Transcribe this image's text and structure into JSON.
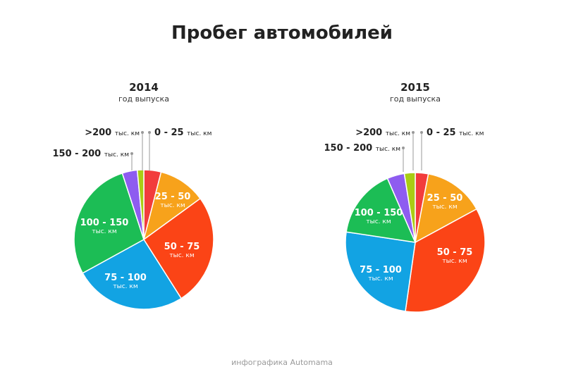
{
  "title": "Пробег автомобилей",
  "footer": "инфографика Automama",
  "colors": {
    "0 - 25": "#f23c3c",
    "25 - 50": "#f7a21b",
    "50 - 75": "#fb4416",
    "75 - 100": "#12a3e3",
    "100 - 150": "#1cbd55",
    "150 - 200": "#8e5cf0",
    ">200": "#a9cd14"
  },
  "chart_data": [
    {
      "type": "pie",
      "title": "2014",
      "subtitle": "год выпуска",
      "unit": "тыс. км",
      "categories": [
        "0 - 25",
        "25 - 50",
        "50 - 75",
        "75 - 100",
        "100 - 150",
        "150 - 200",
        ">200"
      ],
      "values": [
        4,
        11,
        26,
        26,
        28,
        3.5,
        1.5
      ]
    },
    {
      "type": "pie",
      "title": "2015",
      "subtitle": "год выпуска",
      "unit": "тыс. км",
      "categories": [
        "0 - 25",
        "25 - 50",
        "50 - 75",
        "75 - 100",
        "100 - 150",
        "150 - 200",
        ">200"
      ],
      "values": [
        3,
        14,
        35,
        25,
        16,
        4,
        2.5
      ]
    }
  ]
}
